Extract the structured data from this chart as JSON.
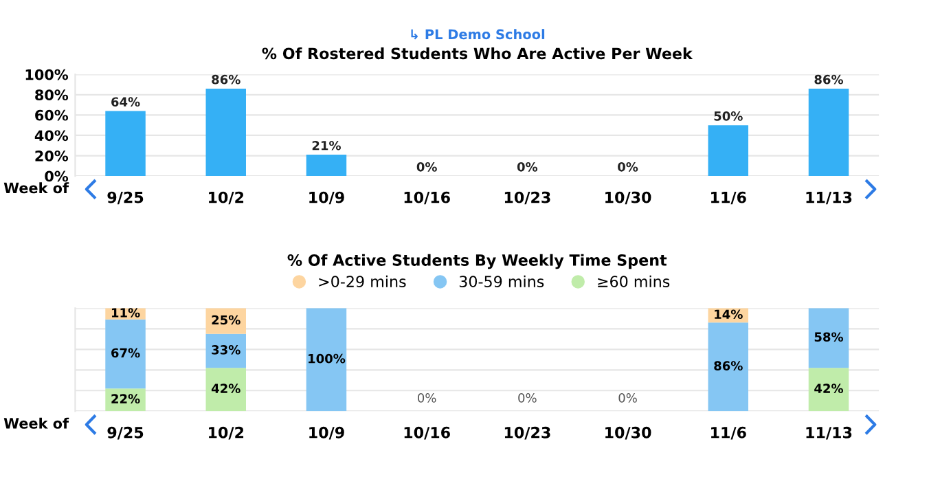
{
  "chart_data": [
    {
      "type": "bar",
      "subtitle": "↳ PL Demo School",
      "title": "% Of Rostered Students Who Are Active Per Week",
      "categories": [
        "9/25",
        "10/2",
        "10/9",
        "10/16",
        "10/23",
        "10/30",
        "11/6",
        "11/13"
      ],
      "values": [
        64,
        86,
        21,
        0,
        0,
        0,
        50,
        86
      ],
      "color": "#35b0f5",
      "value_labels": [
        "64%",
        "86%",
        "21%",
        "0%",
        "0%",
        "0%",
        "50%",
        "86%"
      ],
      "ylim": [
        0,
        100
      ],
      "yticks": [
        {
          "value": 0,
          "label": "0%"
        },
        {
          "value": 20,
          "label": "20%"
        },
        {
          "value": 40,
          "label": "40%"
        },
        {
          "value": 60,
          "label": "60%"
        },
        {
          "value": 80,
          "label": "80%"
        },
        {
          "value": 100,
          "label": "100%"
        }
      ],
      "grid": "y",
      "annotations": [
        "Week of"
      ]
    },
    {
      "type": "bar",
      "title": "% Of Active Students By Weekly Time Spent",
      "stacked": true,
      "categories": [
        "9/25",
        "10/2",
        "10/9",
        "10/16",
        "10/23",
        "10/30",
        "11/6",
        "11/13"
      ],
      "series": [
        {
          "name": "≥60 mins",
          "color": "#c0ecaa",
          "values": [
            22,
            42,
            0,
            0,
            0,
            0,
            0,
            42
          ],
          "value_labels": [
            "22%",
            "42%",
            null,
            null,
            null,
            null,
            null,
            "42%"
          ]
        },
        {
          "name": "30-59 mins",
          "color": "#85c6f3",
          "values": [
            67,
            33,
            100,
            0,
            0,
            0,
            86,
            58
          ],
          "value_labels": [
            "67%",
            "33%",
            "100%",
            null,
            null,
            null,
            "86%",
            "58%"
          ]
        },
        {
          "name": ">0-29 mins",
          "color": "#fdd5a0",
          "values": [
            11,
            25,
            0,
            0,
            0,
            0,
            14,
            0
          ],
          "value_labels": [
            "11%",
            "25%",
            null,
            null,
            null,
            null,
            "14%",
            null
          ]
        }
      ],
      "totals": [
        null,
        null,
        null,
        "0%",
        "0%",
        "0%",
        null,
        null
      ],
      "ylim": [
        0,
        100
      ],
      "yticks": [
        {
          "value": 0,
          "label": null
        },
        {
          "value": 20,
          "label": null
        },
        {
          "value": 40,
          "label": null
        },
        {
          "value": 60,
          "label": null
        },
        {
          "value": 80,
          "label": null
        },
        {
          "value": 100,
          "label": null
        }
      ],
      "tick_labels": "x",
      "grid": "y",
      "legend": "top",
      "annotations": [
        "Week of"
      ]
    }
  ]
}
